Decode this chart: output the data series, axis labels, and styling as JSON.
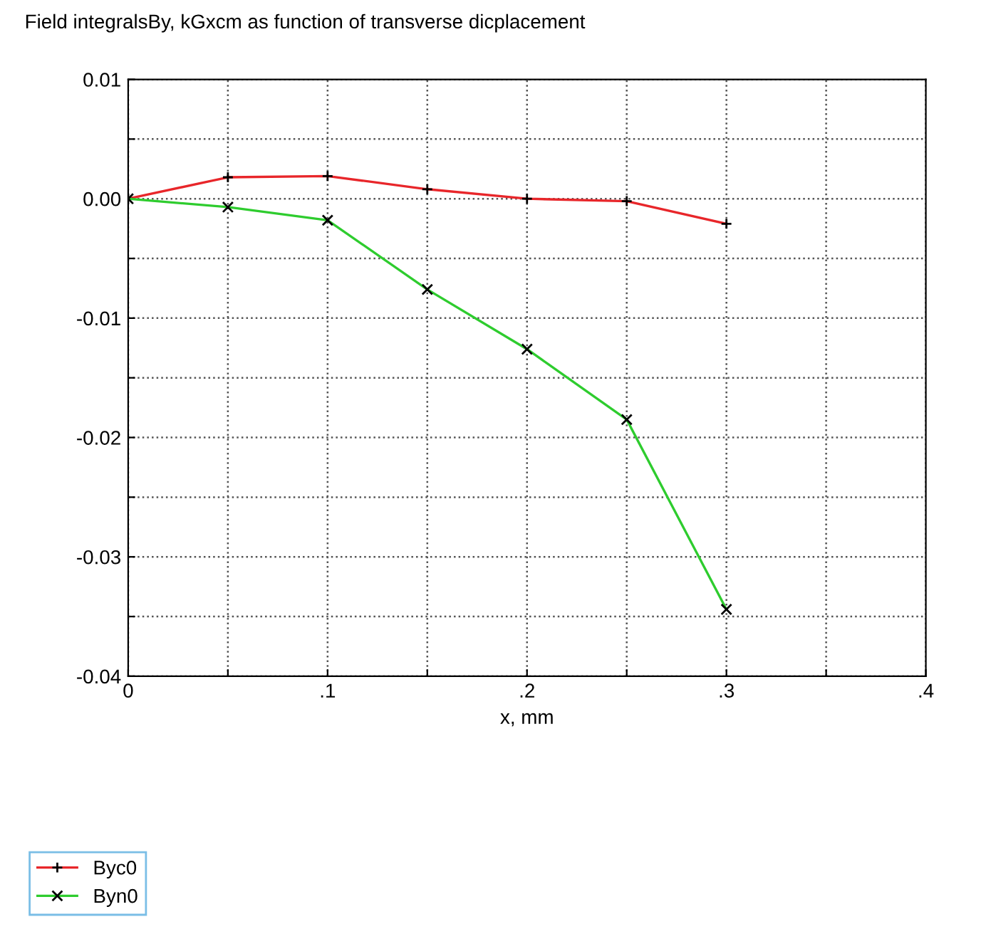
{
  "chart_data": {
    "type": "line",
    "title": "Field integralsBy, kGxcm as function of transverse dicplacement",
    "xlabel": "x, mm",
    "x": [
      0,
      0.05,
      0.1,
      0.15,
      0.2,
      0.25,
      0.3
    ],
    "series": [
      {
        "name": "Byc0",
        "color": "#e8262a",
        "values": [
          0,
          0.0018,
          0.0019,
          0.0008,
          0,
          -0.0002,
          -0.0021
        ],
        "marker": "plus"
      },
      {
        "name": "Byn0",
        "color": "#2ecc2e",
        "values": [
          0,
          -0.0007,
          -0.0018,
          -0.0076,
          -0.0126,
          -0.0185,
          -0.0344
        ],
        "marker": "cross"
      }
    ],
    "xlim": [
      0,
      0.4
    ],
    "xticks": [
      {
        "value": 0,
        "label": "0"
      },
      {
        "value": 0.05,
        "label": null
      },
      {
        "value": 0.1,
        "label": ".1"
      },
      {
        "value": 0.15,
        "label": null
      },
      {
        "value": 0.2,
        "label": ".2"
      },
      {
        "value": 0.25,
        "label": null
      },
      {
        "value": 0.3,
        "label": ".3"
      },
      {
        "value": 0.35,
        "label": null
      },
      {
        "value": 0.4,
        "label": ".4"
      }
    ],
    "ylim": [
      -0.04,
      0.01
    ],
    "yticks": [
      {
        "value": 0.01,
        "label": "0.01"
      },
      {
        "value": 0.005,
        "label": null
      },
      {
        "value": 0,
        "label": "0.00"
      },
      {
        "value": -0.005,
        "label": null
      },
      {
        "value": -0.01,
        "label": "-0.01"
      },
      {
        "value": -0.015,
        "label": null
      },
      {
        "value": -0.02,
        "label": "-0.02"
      },
      {
        "value": -0.025,
        "label": null
      },
      {
        "value": -0.03,
        "label": "-0.03"
      },
      {
        "value": -0.035,
        "label": null
      },
      {
        "value": -0.04,
        "label": "-0.04"
      }
    ],
    "grid": true,
    "legend": "bottom left",
    "line_style": "solid"
  }
}
